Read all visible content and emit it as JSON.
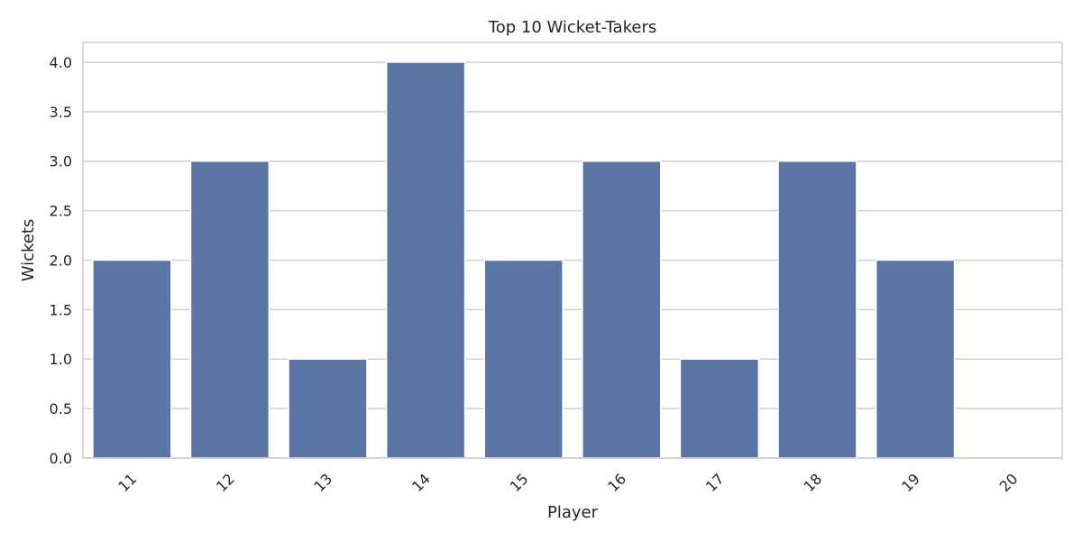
{
  "chart_data": {
    "type": "bar",
    "title": "Top 10 Wicket-Takers",
    "xlabel": "Player",
    "ylabel": "Wickets",
    "categories": [
      "11",
      "12",
      "13",
      "14",
      "15",
      "16",
      "17",
      "18",
      "19",
      "20"
    ],
    "values": [
      2,
      3,
      1,
      4,
      2,
      3,
      1,
      3,
      2,
      0
    ],
    "ylim": [
      0,
      4.2
    ],
    "yticks": [
      "0.0",
      "0.5",
      "1.0",
      "1.5",
      "2.0",
      "2.5",
      "3.0",
      "3.5",
      "4.0"
    ],
    "grid": "horizontal",
    "bar_color": "#5975a4",
    "x_tick_rotation": -45
  }
}
